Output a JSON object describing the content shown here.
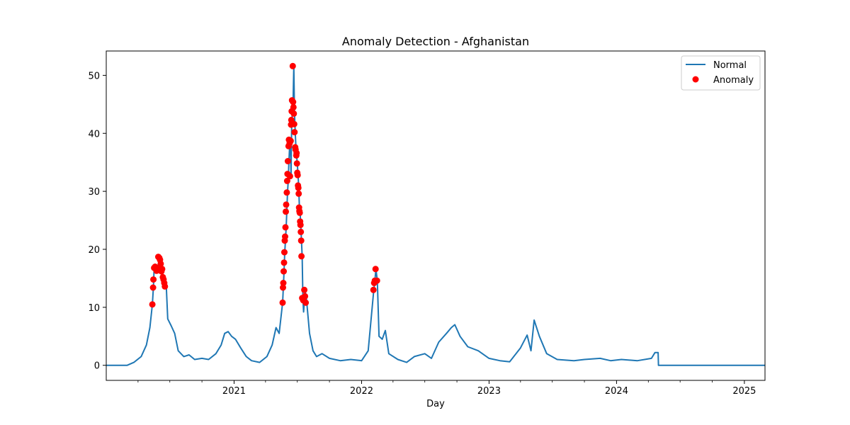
{
  "chart_data": {
    "type": "line",
    "title": "Anomaly Detection - Afghanistan",
    "xlabel": "Day",
    "ylabel": "",
    "xlim": [
      "2020-01-01",
      "2025-03-01"
    ],
    "ylim": [
      -2.6,
      54.2
    ],
    "x_ticks": [
      "2021-01-01",
      "2022-01-01",
      "2023-01-01",
      "2024-01-01",
      "2025-01-01"
    ],
    "x_tick_labels": [
      "2021",
      "2022",
      "2023",
      "2024",
      "2025"
    ],
    "y_ticks": [
      0,
      10,
      20,
      30,
      40,
      50
    ],
    "y_tick_labels": [
      "0",
      "10",
      "20",
      "30",
      "40",
      "50"
    ],
    "grid": false,
    "legend": {
      "position": "top-right",
      "entries": [
        "Normal",
        "Anomaly"
      ]
    },
    "colors": {
      "normal": "#1f77b4",
      "anomaly": "#ff0000"
    },
    "series": [
      {
        "name": "Normal",
        "kind": "line",
        "points": [
          [
            "2020-01-01",
            0
          ],
          [
            "2020-03-01",
            0
          ],
          [
            "2020-03-20",
            0.5
          ],
          [
            "2020-04-10",
            1.5
          ],
          [
            "2020-04-25",
            3.5
          ],
          [
            "2020-05-05",
            6.5
          ],
          [
            "2020-05-12",
            10.5
          ],
          [
            "2020-05-15",
            13.5
          ],
          [
            "2020-05-17",
            16.8
          ],
          [
            "2020-05-22",
            17.0
          ],
          [
            "2020-05-27",
            16.5
          ],
          [
            "2020-06-01",
            18.7
          ],
          [
            "2020-06-05",
            17.8
          ],
          [
            "2020-06-09",
            16.2
          ],
          [
            "2020-06-13",
            15.2
          ],
          [
            "2020-06-17",
            14.5
          ],
          [
            "2020-06-21",
            13.5
          ],
          [
            "2020-06-25",
            8.0
          ],
          [
            "2020-07-05",
            6.8
          ],
          [
            "2020-07-15",
            5.5
          ],
          [
            "2020-07-25",
            2.5
          ],
          [
            "2020-08-10",
            1.5
          ],
          [
            "2020-08-25",
            1.8
          ],
          [
            "2020-09-10",
            1.0
          ],
          [
            "2020-10-01",
            1.2
          ],
          [
            "2020-10-20",
            1.0
          ],
          [
            "2020-11-10",
            2.0
          ],
          [
            "2020-11-25",
            3.5
          ],
          [
            "2020-12-05",
            5.5
          ],
          [
            "2020-12-15",
            5.8
          ],
          [
            "2020-12-25",
            5.0
          ],
          [
            "2021-01-05",
            4.5
          ],
          [
            "2021-01-20",
            3.0
          ],
          [
            "2021-02-05",
            1.5
          ],
          [
            "2021-02-20",
            0.8
          ],
          [
            "2021-03-15",
            0.5
          ],
          [
            "2021-04-05",
            1.5
          ],
          [
            "2021-04-20",
            3.5
          ],
          [
            "2021-05-01",
            6.5
          ],
          [
            "2021-05-10",
            5.5
          ],
          [
            "2021-05-20",
            10.8
          ],
          [
            "2021-05-22",
            13.4
          ],
          [
            "2021-05-24",
            16.2
          ],
          [
            "2021-05-26",
            19.5
          ],
          [
            "2021-05-28",
            21.5
          ],
          [
            "2021-05-30",
            23.8
          ],
          [
            "2021-06-01",
            26.5
          ],
          [
            "2021-06-03",
            29.8
          ],
          [
            "2021-06-05",
            31.8
          ],
          [
            "2021-06-07",
            35.2
          ],
          [
            "2021-06-09",
            37.8
          ],
          [
            "2021-06-11",
            38.9
          ],
          [
            "2021-06-13",
            32.6
          ],
          [
            "2021-06-15",
            41.5
          ],
          [
            "2021-06-17",
            43.8
          ],
          [
            "2021-06-19",
            45.7
          ],
          [
            "2021-06-21",
            51.6
          ],
          [
            "2021-06-23",
            43.4
          ],
          [
            "2021-06-25",
            40.2
          ],
          [
            "2021-06-27",
            37.5
          ],
          [
            "2021-06-29",
            36.2
          ],
          [
            "2021-07-01",
            34.8
          ],
          [
            "2021-07-03",
            33.0
          ],
          [
            "2021-07-05",
            30.8
          ],
          [
            "2021-07-07",
            27.2
          ],
          [
            "2021-07-09",
            26.3
          ],
          [
            "2021-07-11",
            24.0
          ],
          [
            "2021-07-13",
            21.5
          ],
          [
            "2021-07-15",
            18.8
          ],
          [
            "2021-07-17",
            11.6
          ],
          [
            "2021-07-19",
            9.2
          ],
          [
            "2021-07-21",
            10.8
          ],
          [
            "2021-07-23",
            13.0
          ],
          [
            "2021-07-27",
            11.5
          ],
          [
            "2021-08-05",
            5.5
          ],
          [
            "2021-08-15",
            2.5
          ],
          [
            "2021-08-25",
            1.5
          ],
          [
            "2021-09-10",
            2.0
          ],
          [
            "2021-10-01",
            1.2
          ],
          [
            "2021-11-01",
            0.8
          ],
          [
            "2021-12-01",
            1.0
          ],
          [
            "2022-01-01",
            0.8
          ],
          [
            "2022-01-20",
            2.5
          ],
          [
            "2022-02-05",
            13.0
          ],
          [
            "2022-02-08",
            14.5
          ],
          [
            "2022-02-11",
            16.6
          ],
          [
            "2022-02-15",
            14.6
          ],
          [
            "2022-02-20",
            5.0
          ],
          [
            "2022-03-01",
            4.5
          ],
          [
            "2022-03-10",
            6.0
          ],
          [
            "2022-03-20",
            2.0
          ],
          [
            "2022-04-15",
            1.0
          ],
          [
            "2022-05-10",
            0.5
          ],
          [
            "2022-06-01",
            1.5
          ],
          [
            "2022-07-01",
            2.0
          ],
          [
            "2022-07-20",
            1.2
          ],
          [
            "2022-08-10",
            4.0
          ],
          [
            "2022-09-01",
            5.5
          ],
          [
            "2022-09-15",
            6.5
          ],
          [
            "2022-09-25",
            7.0
          ],
          [
            "2022-10-10",
            5.0
          ],
          [
            "2022-11-01",
            3.2
          ],
          [
            "2022-12-01",
            2.5
          ],
          [
            "2023-01-01",
            1.2
          ],
          [
            "2023-02-01",
            0.8
          ],
          [
            "2023-03-01",
            0.6
          ],
          [
            "2023-04-01",
            3.0
          ],
          [
            "2023-04-20",
            5.2
          ],
          [
            "2023-05-01",
            2.5
          ],
          [
            "2023-05-10",
            7.8
          ],
          [
            "2023-05-25",
            5.0
          ],
          [
            "2023-06-15",
            2.0
          ],
          [
            "2023-07-15",
            1.0
          ],
          [
            "2023-09-01",
            0.8
          ],
          [
            "2023-10-01",
            1.0
          ],
          [
            "2023-11-15",
            1.2
          ],
          [
            "2023-12-15",
            0.8
          ],
          [
            "2024-01-15",
            1.0
          ],
          [
            "2024-03-01",
            0.8
          ],
          [
            "2024-04-10",
            1.2
          ],
          [
            "2024-04-20",
            2.2
          ],
          [
            "2024-04-29",
            2.2
          ],
          [
            "2024-04-30",
            0
          ],
          [
            "2025-03-01",
            0
          ]
        ]
      },
      {
        "name": "Anomaly",
        "kind": "scatter",
        "points": [
          [
            "2020-05-12",
            10.5
          ],
          [
            "2020-05-14",
            13.4
          ],
          [
            "2020-05-15",
            14.8
          ],
          [
            "2020-05-17",
            16.8
          ],
          [
            "2020-05-20",
            17.0
          ],
          [
            "2020-05-24",
            16.3
          ],
          [
            "2020-05-27",
            16.6
          ],
          [
            "2020-05-29",
            18.7
          ],
          [
            "2020-06-01",
            18.5
          ],
          [
            "2020-06-03",
            18.2
          ],
          [
            "2020-06-05",
            17.5
          ],
          [
            "2020-06-07",
            16.2
          ],
          [
            "2020-06-09",
            16.6
          ],
          [
            "2020-06-11",
            15.2
          ],
          [
            "2020-06-13",
            14.8
          ],
          [
            "2020-06-15",
            14.2
          ],
          [
            "2020-06-17",
            13.6
          ],
          [
            "2021-05-20",
            10.8
          ],
          [
            "2021-05-21",
            13.4
          ],
          [
            "2021-05-22",
            14.2
          ],
          [
            "2021-05-23",
            16.2
          ],
          [
            "2021-05-24",
            17.7
          ],
          [
            "2021-05-25",
            19.5
          ],
          [
            "2021-05-26",
            21.5
          ],
          [
            "2021-05-27",
            22.2
          ],
          [
            "2021-05-28",
            23.8
          ],
          [
            "2021-05-29",
            26.5
          ],
          [
            "2021-05-30",
            27.7
          ],
          [
            "2021-06-01",
            29.8
          ],
          [
            "2021-06-02",
            31.8
          ],
          [
            "2021-06-03",
            33.0
          ],
          [
            "2021-06-04",
            35.2
          ],
          [
            "2021-06-06",
            37.8
          ],
          [
            "2021-06-07",
            38.9
          ],
          [
            "2021-06-09",
            38.3
          ],
          [
            "2021-06-10",
            32.6
          ],
          [
            "2021-06-12",
            38.7
          ],
          [
            "2021-06-13",
            41.5
          ],
          [
            "2021-06-14",
            42.3
          ],
          [
            "2021-06-15",
            43.8
          ],
          [
            "2021-06-16",
            45.7
          ],
          [
            "2021-06-18",
            51.6
          ],
          [
            "2021-06-19",
            45.4
          ],
          [
            "2021-06-20",
            44.5
          ],
          [
            "2021-06-21",
            43.4
          ],
          [
            "2021-06-22",
            41.6
          ],
          [
            "2021-06-23",
            40.2
          ],
          [
            "2021-06-25",
            37.6
          ],
          [
            "2021-06-26",
            37.2
          ],
          [
            "2021-06-28",
            36.2
          ],
          [
            "2021-06-29",
            36.6
          ],
          [
            "2021-06-30",
            34.8
          ],
          [
            "2021-07-01",
            33.2
          ],
          [
            "2021-07-02",
            32.8
          ],
          [
            "2021-07-03",
            31.0
          ],
          [
            "2021-07-04",
            30.6
          ],
          [
            "2021-07-05",
            29.6
          ],
          [
            "2021-07-06",
            27.2
          ],
          [
            "2021-07-07",
            26.6
          ],
          [
            "2021-07-08",
            26.3
          ],
          [
            "2021-07-09",
            24.8
          ],
          [
            "2021-07-10",
            24.2
          ],
          [
            "2021-07-11",
            23.0
          ],
          [
            "2021-07-12",
            21.5
          ],
          [
            "2021-07-13",
            18.8
          ],
          [
            "2021-07-15",
            11.6
          ],
          [
            "2021-07-18",
            11.2
          ],
          [
            "2021-07-21",
            13.0
          ],
          [
            "2021-07-23",
            11.9
          ],
          [
            "2021-07-25",
            10.8
          ],
          [
            "2022-02-04",
            13.0
          ],
          [
            "2022-02-06",
            14.2
          ],
          [
            "2022-02-08",
            14.6
          ],
          [
            "2022-02-10",
            16.6
          ],
          [
            "2022-02-14",
            14.6
          ]
        ]
      }
    ]
  }
}
